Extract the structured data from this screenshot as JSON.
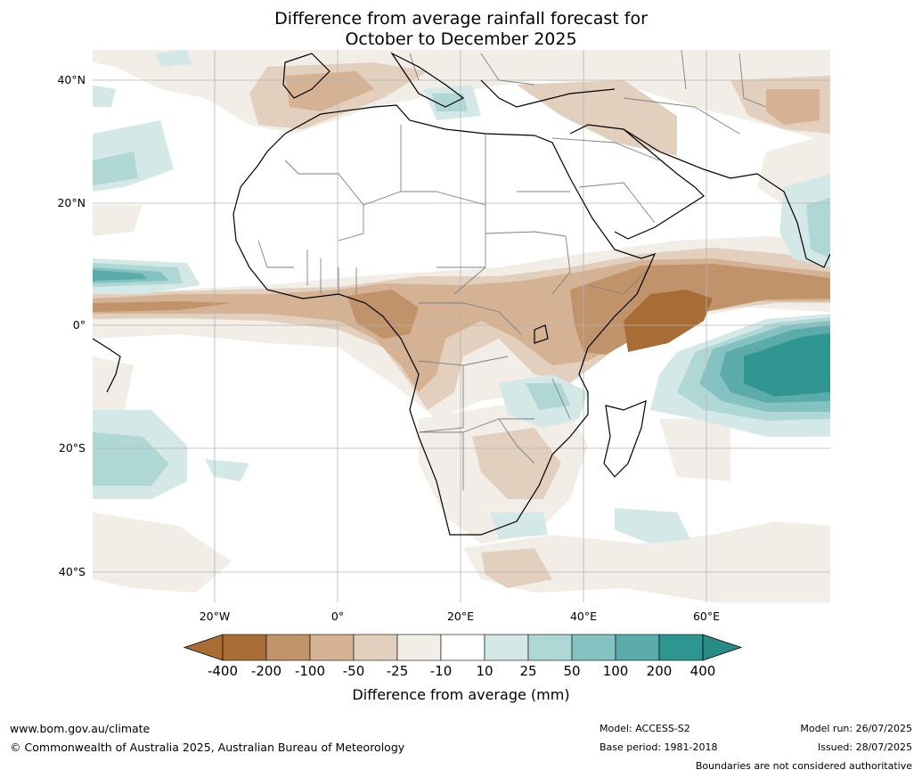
{
  "title": {
    "line1": "Difference from average rainfall forecast for",
    "line2": "October to December 2025"
  },
  "map": {
    "lat_labels": [
      "40°N",
      "20°N",
      "0°",
      "20°S",
      "40°S"
    ],
    "lon_labels": [
      "20°W",
      "0°",
      "20°E",
      "40°E",
      "60°E"
    ],
    "ocean_color": "#ffffff",
    "land_color": "#ffffff",
    "border_color": "#808080",
    "coast_color": "#000000"
  },
  "colorbar": {
    "ticks": [
      "-400",
      "-200",
      "-100",
      "-50",
      "-25",
      "-10",
      "10",
      "25",
      "50",
      "100",
      "200",
      "400"
    ],
    "colors": [
      "#a86d37",
      "#c0936a",
      "#d4b293",
      "#e2cfbd",
      "#f2ede6",
      "#ffffff",
      "#d4e8e7",
      "#afd7d6",
      "#84c2c1",
      "#5aaba9",
      "#2f9590"
    ],
    "low_extend_color": "#a86d37",
    "high_extend_color": "#2a8a86",
    "label": "Difference from average (mm)"
  },
  "footer": {
    "website": "www.bom.gov.au/climate",
    "copyright": "© Commonwealth of Australia 2025, Australian Bureau of Meteorology",
    "model": "Model: ACCESS-S2",
    "base_period": "Base period: 1981-2018",
    "model_run": "Model run: 26/07/2025",
    "issued": "Issued: 28/07/2025",
    "disclaimer": "Boundaries are not considered authoritative"
  }
}
